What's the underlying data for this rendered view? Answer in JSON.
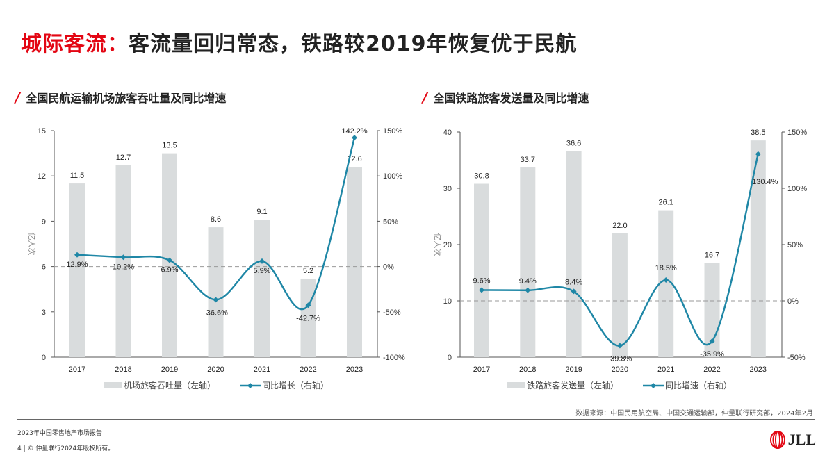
{
  "title": {
    "highlight": "城际客流：",
    "rest": "客流量回归常态，铁路较2019年恢复优于民航"
  },
  "chart_data": [
    {
      "type": "bar+line",
      "subtitle": "全国民航运输机场旅客吞吐量及同比增速",
      "categories": [
        "2017",
        "2018",
        "2019",
        "2020",
        "2021",
        "2022",
        "2023"
      ],
      "ylabel": "亿人次",
      "ylim": [
        0,
        15
      ],
      "yticks": [
        "0",
        "3",
        "6",
        "9",
        "12",
        "15"
      ],
      "y2lim": [
        -100,
        150
      ],
      "y2ticks": [
        "-100%",
        "-50%",
        "0%",
        "50%",
        "100%",
        "150%"
      ],
      "series": [
        {
          "name": "机场旅客吞吐量（左轴）",
          "type": "bar",
          "values": [
            11.5,
            12.7,
            13.5,
            8.6,
            9.1,
            5.2,
            12.6
          ],
          "labels": [
            "11.5",
            "12.7",
            "13.5",
            "8.6",
            "9.1",
            "5.2",
            "12.6"
          ],
          "color": "#d9dcdd"
        },
        {
          "name": "同比增长（右轴）",
          "type": "line",
          "values": [
            12.9,
            10.2,
            6.9,
            -36.6,
            5.9,
            -42.7,
            142.2
          ],
          "labels": [
            "12.9%",
            "10.2%",
            "6.9%",
            "-36.6%",
            "5.9%",
            "-42.7%",
            "142.2%"
          ],
          "color": "#1f87a6"
        }
      ],
      "legend": "bottom",
      "grid": false
    },
    {
      "type": "bar+line",
      "subtitle": "全国铁路旅客发送量及同比增速",
      "categories": [
        "2017",
        "2018",
        "2019",
        "2020",
        "2021",
        "2022",
        "2023"
      ],
      "ylabel": "亿人次",
      "ylim": [
        0,
        40
      ],
      "yticks": [
        "0",
        "10",
        "20",
        "30",
        "40"
      ],
      "y2lim": [
        -50,
        150
      ],
      "y2ticks": [
        "-50%",
        "0%",
        "50%",
        "100%",
        "150%"
      ],
      "series": [
        {
          "name": "铁路旅客发送量（左轴）",
          "type": "bar",
          "values": [
            30.8,
            33.7,
            36.6,
            22.0,
            26.1,
            16.7,
            38.5
          ],
          "labels": [
            "30.8",
            "33.7",
            "36.6",
            "22.0",
            "26.1",
            "16.7",
            "38.5"
          ],
          "color": "#d9dcdd"
        },
        {
          "name": "同比增速（右轴）",
          "type": "line",
          "values": [
            9.6,
            9.4,
            8.4,
            -39.8,
            18.5,
            -35.9,
            130.4
          ],
          "labels": [
            "9.6%",
            "9.4%",
            "8.4%",
            "-39.8%",
            "18.5%",
            "-35.9%",
            "130.4%"
          ],
          "color": "#1f87a6"
        }
      ],
      "legend": "bottom",
      "grid": false
    }
  ],
  "source": "数据来源：中国民用航空局、中国交通运输部，仲量联行研究部，2024年2月",
  "footer": {
    "report": "2023年中国零售地产市场报告",
    "copyright": "4 | © 仲量联行2024年版权所有。"
  },
  "logo": "JLL"
}
